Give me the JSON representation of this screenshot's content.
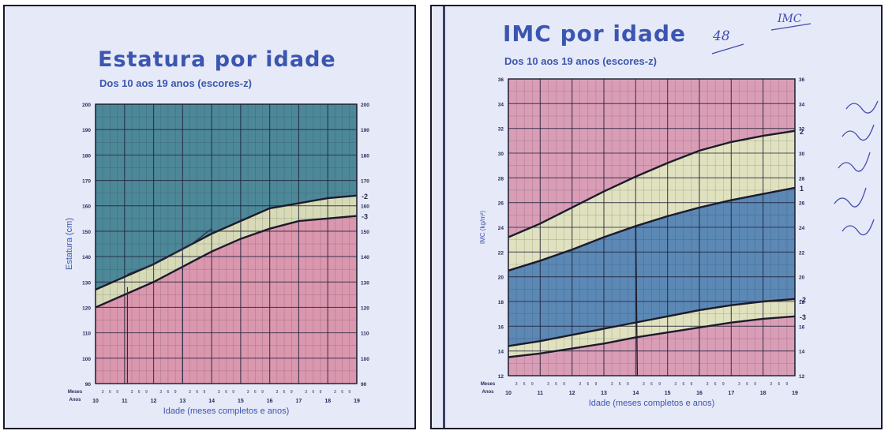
{
  "colors": {
    "above": "#3f7f8f",
    "band": "#d6d8b0",
    "below": "#d98fa6",
    "outer": "#d996b0",
    "middle": "#dfe0b8",
    "inner": "#4f7fae",
    "curve": "#1b1b2b",
    "text": "#3b56b0"
  },
  "left": {
    "title": "Estatura por idade",
    "subtitle": "Dos 10 aos 19 anos (escores-z)",
    "ylabel": "Estatura (cm)",
    "xlabel": "Idade (meses completos e anos)",
    "meses_label": "Meses",
    "anos_label": "Anos"
  },
  "right": {
    "title": "IMC por idade",
    "subtitle": "Dos 10 aos 19 anos (escores-z)",
    "ylabel": "IMC (kg/m²)",
    "xlabel": "Idade (meses completos e anos)",
    "meses_label": "Meses",
    "anos_label": "Anos",
    "handwriting": [
      "48",
      "IMC"
    ]
  },
  "chart_data": [
    {
      "type": "line",
      "title": "Estatura por idade",
      "subtitle": "Dos 10 aos 19 anos (escores-z)",
      "xlabel": "Idade (meses completos e anos)",
      "ylabel": "Estatura (cm)",
      "xlim": [
        10,
        19
      ],
      "ylim": [
        90,
        200
      ],
      "x_ticks": [
        "10",
        "11",
        "12",
        "13",
        "14",
        "15",
        "16",
        "17",
        "18",
        "19"
      ],
      "y_ticks": [
        90,
        100,
        110,
        120,
        130,
        140,
        150,
        160,
        170,
        180,
        190,
        200
      ],
      "grid": true,
      "series": [
        {
          "name": "-2",
          "x": [
            10,
            11,
            12,
            13,
            14,
            15,
            16,
            17,
            18,
            19
          ],
          "values": [
            127,
            132,
            137,
            143,
            149,
            154,
            159,
            161,
            163,
            164
          ]
        },
        {
          "name": "-3",
          "x": [
            10,
            11,
            12,
            13,
            14,
            15,
            16,
            17,
            18,
            19
          ],
          "values": [
            120,
            125,
            130,
            136,
            142,
            147,
            151,
            154,
            155,
            156
          ]
        }
      ],
      "zones": [
        "above -2",
        "between -3 and -2",
        "below -3"
      ]
    },
    {
      "type": "line",
      "title": "IMC por idade",
      "subtitle": "Dos 10 aos 19 anos (escores-z)",
      "xlabel": "Idade (meses completos e anos)",
      "ylabel": "IMC (kg/m²)",
      "xlim": [
        10,
        19
      ],
      "ylim": [
        12,
        36
      ],
      "x_ticks": [
        "10",
        "11",
        "12",
        "13",
        "14",
        "15",
        "16",
        "17",
        "18",
        "19"
      ],
      "y_ticks": [
        12,
        14,
        16,
        18,
        20,
        22,
        24,
        26,
        28,
        30,
        32,
        34,
        36
      ],
      "grid": true,
      "series": [
        {
          "name": "2",
          "x": [
            10,
            11,
            12,
            13,
            14,
            15,
            16,
            17,
            18,
            19
          ],
          "values": [
            23.2,
            24.3,
            25.6,
            26.9,
            28.1,
            29.2,
            30.2,
            30.9,
            31.4,
            31.8
          ]
        },
        {
          "name": "1",
          "x": [
            10,
            11,
            12,
            13,
            14,
            15,
            16,
            17,
            18,
            19
          ],
          "values": [
            20.5,
            21.3,
            22.2,
            23.2,
            24.1,
            24.9,
            25.6,
            26.2,
            26.7,
            27.2
          ]
        },
        {
          "name": "-2",
          "x": [
            10,
            11,
            12,
            13,
            14,
            15,
            16,
            17,
            18,
            19
          ],
          "values": [
            14.4,
            14.8,
            15.3,
            15.8,
            16.3,
            16.8,
            17.3,
            17.7,
            18.0,
            18.2
          ]
        },
        {
          "name": "-3",
          "x": [
            10,
            11,
            12,
            13,
            14,
            15,
            16,
            17,
            18,
            19
          ],
          "values": [
            13.5,
            13.8,
            14.2,
            14.6,
            15.1,
            15.5,
            15.9,
            16.3,
            16.6,
            16.8
          ]
        }
      ],
      "zones": [
        "above 2",
        "between 1 and 2",
        "between -2 and 1",
        "between -3 and -2",
        "below -3"
      ]
    }
  ]
}
